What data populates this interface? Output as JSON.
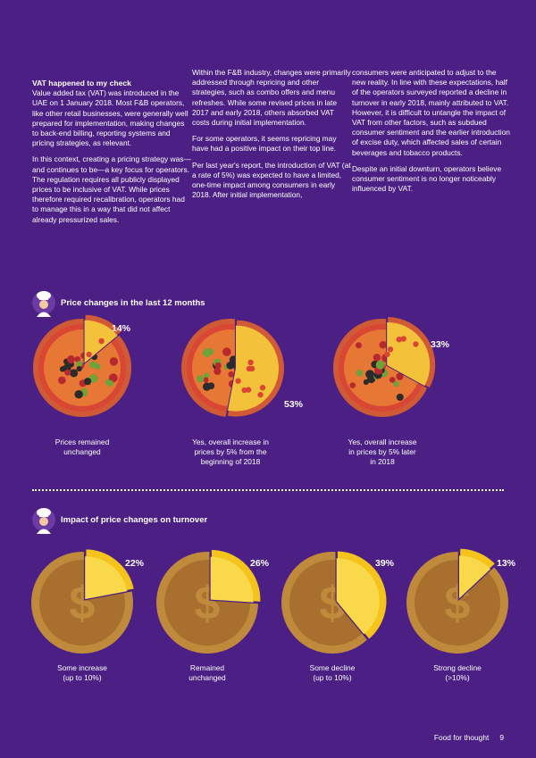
{
  "article": {
    "col1": {
      "heading": "VAT happened to my check",
      "p1": "Value added tax (VAT) was introduced in the UAE on 1 January 2018. Most F&B operators, like other retail businesses, were generally well prepared for implementation, making changes to back-end billing, reporting systems and pricing strategies, as relevant.",
      "p2": "In this context, creating a pricing strategy was—and continues to be—a key focus for operators. The regulation requires all publicly displayed prices to be inclusive of VAT. While prices therefore required recalibration, operators had to manage this in a way that did not affect already pressurized sales."
    },
    "col2": {
      "p1": "Within the F&B industry, changes were primarily addressed through repricing and other strategies, such as combo offers and menu refreshes. While some revised prices in late 2017 and early 2018, others absorbed VAT costs during initial implementation.",
      "p2": "For some operators, it seems repricing may have had a positive impact on their top line.",
      "p3": "Per last year's report, the introduction of VAT (at a rate of 5%) was expected to have a limited, one-time impact among consumers in early 2018. After initial implementation,"
    },
    "col3": {
      "p1": "consumers were anticipated to adjust to the new reality. In line with these expectations, half of the operators surveyed reported a decline in turnover in early 2018, mainly attributed to VAT. However, it is difficult to untangle the impact of VAT from other factors, such as subdued consumer sentiment and the earlier introduction of excise duty, which affected sales of certain beverages and tobacco products.",
      "p2": "Despite an initial downturn, operators believe consumer sentiment is no longer noticeably influenced by VAT."
    }
  },
  "section1": {
    "title": "Price changes in the last 12 months"
  },
  "section2": {
    "title": "Impact of price changes on turnover"
  },
  "chart_data": [
    {
      "type": "pie",
      "title": "Price changes in the last 12 months",
      "categories": [
        "Prices remained unchanged",
        "Yes, overall increase in prices by 5% from the beginning of 2018",
        "Yes, overall increase in prices by 5% later in 2018"
      ],
      "values": [
        14,
        53,
        33
      ],
      "labels": [
        "14%",
        "53%",
        "33%"
      ],
      "captions": [
        [
          "Prices remained",
          "unchanged"
        ],
        [
          "Yes, overall increase in",
          "prices by 5% from the",
          "beginning of 2018"
        ],
        [
          "Yes, overall increase",
          "in prices by 5% later",
          "in 2018"
        ]
      ],
      "colors": {
        "crust": "#d05a35",
        "sauce": "#d94634",
        "cheese": "#f0a135",
        "slice": "#f3c23a",
        "outline": "#4b1f83"
      }
    },
    {
      "type": "pie",
      "title": "Impact of price changes on turnover",
      "categories": [
        "Some increase (up to 10%)",
        "Remained unchanged",
        "Some decline (up to 10%)",
        "Strong decline (>10%)"
      ],
      "values": [
        22,
        26,
        39,
        13
      ],
      "labels": [
        "22%",
        "26%",
        "39%",
        "13%"
      ],
      "captions": [
        [
          "Some increase",
          "(up to 10%)"
        ],
        [
          "Remained",
          "unchanged"
        ],
        [
          "Some decline",
          "(up to 10%)"
        ],
        [
          "Strong decline",
          "(>10%)"
        ]
      ],
      "colors": {
        "coin": "#c08a3c",
        "coin_inner": "#a96f2e",
        "slice": "#f5c41c",
        "slice_inner": "#f9d84a",
        "outline": "#4b1f83"
      }
    }
  ],
  "footer": {
    "title": "Food for thought",
    "page": "9"
  }
}
